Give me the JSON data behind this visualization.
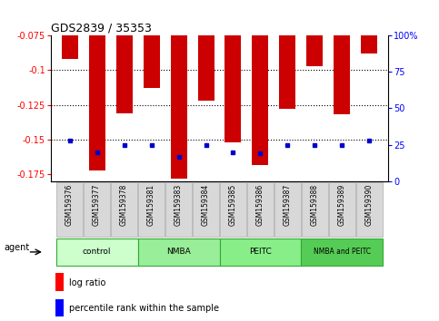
{
  "title": "GDS2839 / 35353",
  "samples": [
    "GSM159376",
    "GSM159377",
    "GSM159378",
    "GSM159381",
    "GSM159383",
    "GSM159384",
    "GSM159385",
    "GSM159386",
    "GSM159387",
    "GSM159388",
    "GSM159389",
    "GSM159390"
  ],
  "log_ratio": [
    -0.092,
    -0.172,
    -0.131,
    -0.113,
    -0.178,
    -0.122,
    -0.152,
    -0.168,
    -0.128,
    -0.097,
    -0.132,
    -0.088
  ],
  "percentile_rank": [
    28,
    20,
    25,
    25,
    17,
    25,
    20,
    19,
    25,
    25,
    25,
    28
  ],
  "groups": [
    {
      "label": "control",
      "start": 0,
      "end": 3,
      "color": "#ccffcc"
    },
    {
      "label": "NMBA",
      "start": 3,
      "end": 6,
      "color": "#99ee99"
    },
    {
      "label": "PEITC",
      "start": 6,
      "end": 9,
      "color": "#88ee88"
    },
    {
      "label": "NMBA and PEITC",
      "start": 9,
      "end": 12,
      "color": "#55cc55"
    }
  ],
  "ylim_left": [
    -0.18,
    -0.075
  ],
  "ylim_right": [
    0,
    100
  ],
  "yticks_left": [
    -0.175,
    -0.15,
    -0.125,
    -0.1,
    -0.075
  ],
  "ytick_labels_left": [
    "-0.175",
    "-0.15",
    "-0.125",
    "-0.1",
    "-0.075"
  ],
  "yticks_right": [
    0,
    25,
    50,
    75,
    100
  ],
  "ytick_labels_right": [
    "0",
    "25",
    "50",
    "75",
    "100%"
  ],
  "bar_color": "#cc0000",
  "dot_color": "#0000cc",
  "bar_width": 0.6,
  "legend_log_ratio": "log ratio",
  "legend_percentile": "percentile rank within the sample",
  "agent_label": "agent",
  "grid_dotted_at": [
    -0.1,
    -0.125,
    -0.15
  ]
}
